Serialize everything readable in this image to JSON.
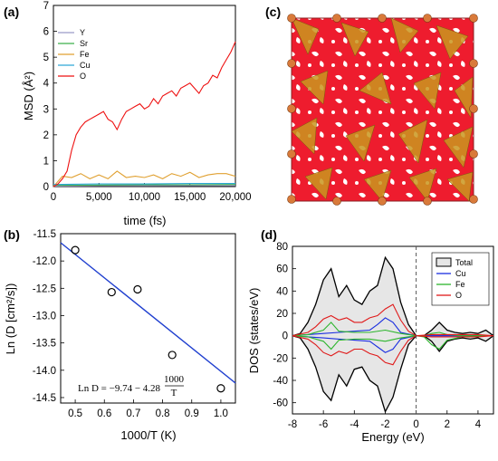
{
  "chart_data": [
    {
      "panel": "(a)",
      "type": "line",
      "xlabel": "time (fs)",
      "ylabel": "MSD (Å²)",
      "xlim": [
        0,
        20000
      ],
      "ylim": [
        0,
        7
      ],
      "x_ticks": [
        "0",
        "5,000",
        "10,000",
        "15,000",
        "20,000"
      ],
      "y_ticks": [
        "0",
        "1",
        "2",
        "3",
        "4",
        "5",
        "6",
        "7"
      ],
      "legend_position": "top-left",
      "series": [
        {
          "name": "Y",
          "color": "#9a9ac8",
          "x": [
            0,
            5000,
            10000,
            15000,
            20000
          ],
          "y": [
            0.02,
            0.03,
            0.03,
            0.04,
            0.04
          ]
        },
        {
          "name": "Sr",
          "color": "#3cb04a",
          "x": [
            0,
            5000,
            10000,
            15000,
            20000
          ],
          "y": [
            0.05,
            0.06,
            0.07,
            0.07,
            0.08
          ]
        },
        {
          "name": "Fe",
          "color": "#e0a030",
          "x": [
            0,
            1000,
            2000,
            3000,
            4000,
            5000,
            6000,
            7000,
            8000,
            9000,
            10000,
            11000,
            12000,
            13000,
            14000,
            15000,
            16000,
            17000,
            18000,
            19000,
            20000
          ],
          "y": [
            0.0,
            0.4,
            0.35,
            0.5,
            0.3,
            0.45,
            0.3,
            0.6,
            0.35,
            0.4,
            0.35,
            0.45,
            0.3,
            0.5,
            0.4,
            0.55,
            0.35,
            0.45,
            0.5,
            0.5,
            0.4
          ]
        },
        {
          "name": "Cu",
          "color": "#2ea8d8",
          "x": [
            0,
            5000,
            10000,
            15000,
            20000
          ],
          "y": [
            0.08,
            0.1,
            0.1,
            0.12,
            0.12
          ]
        },
        {
          "name": "O",
          "color": "#ee1111",
          "x": [
            0,
            500,
            1000,
            1500,
            2000,
            2500,
            3000,
            3500,
            4000,
            4500,
            5000,
            5500,
            6000,
            6500,
            7000,
            7500,
            8000,
            8500,
            9000,
            9500,
            10000,
            10500,
            11000,
            11500,
            12000,
            12500,
            13000,
            13500,
            14000,
            14500,
            15000,
            15500,
            16000,
            16500,
            17000,
            17500,
            18000,
            18500,
            19000,
            19500,
            20000
          ],
          "y": [
            0.0,
            0.1,
            0.3,
            0.6,
            1.4,
            2.0,
            2.3,
            2.5,
            2.6,
            2.7,
            2.8,
            2.9,
            2.6,
            2.5,
            2.2,
            2.6,
            2.9,
            3.0,
            3.1,
            3.2,
            3.0,
            3.1,
            3.4,
            3.2,
            3.5,
            3.6,
            3.7,
            3.5,
            3.8,
            3.9,
            4.0,
            3.8,
            3.6,
            3.9,
            4.0,
            4.3,
            4.2,
            4.6,
            4.9,
            5.2,
            5.6
          ]
        }
      ]
    },
    {
      "panel": "(b)",
      "type": "scatter",
      "xlabel": "1000/T (K)",
      "ylabel": "Ln (D [cm²/s])",
      "xlim": [
        0.45,
        1.05
      ],
      "ylim": [
        -14.6,
        -11.5
      ],
      "x_ticks": [
        "0.5",
        "0.6",
        "0.7",
        "0.8",
        "0.9",
        "1.0"
      ],
      "y_ticks": [
        "-11.5",
        "-12.0",
        "-12.5",
        "-13.0",
        "-13.5",
        "-14.0",
        "-14.5"
      ],
      "points": {
        "x": [
          0.5,
          0.625,
          0.714,
          0.833,
          1.0
        ],
        "y": [
          -11.8,
          -12.57,
          -12.52,
          -13.72,
          -14.33
        ]
      },
      "fit": {
        "intercept": -9.74,
        "slope": -4.28,
        "color": "#1f3fcf"
      },
      "equation_text": {
        "lhs": "Ln D = −9.74 − 4.28",
        "num": "1000",
        "den": "T"
      }
    },
    {
      "panel": "(c)",
      "type": "structure image",
      "colors": {
        "oxygen": "#ee1c2e",
        "polyhedra": "#c9961f",
        "cation": "#d97a3a"
      }
    },
    {
      "panel": "(d)",
      "type": "line",
      "xlabel": "Energy (eV)",
      "ylabel": "DOS (states/eV)",
      "xlim": [
        -8,
        5
      ],
      "ylim": [
        -70,
        80
      ],
      "x_ticks": [
        "-8",
        "-6",
        "-4",
        "-2",
        "0",
        "2",
        "4"
      ],
      "y_ticks": [
        "-60",
        "-40",
        "-20",
        "0",
        "20",
        "40",
        "60",
        "80"
      ],
      "fermi_level": 0,
      "legend_position": "top-right",
      "series": [
        {
          "name": "Total",
          "color": "#000000",
          "fill": "#e6e6e6",
          "x": [
            -8,
            -7.5,
            -7,
            -6.5,
            -6,
            -5.5,
            -5,
            -4.5,
            -4,
            -3.5,
            -3,
            -2.5,
            -2,
            -1.5,
            -1,
            -0.5,
            0,
            0.5,
            1,
            1.5,
            2,
            2.5,
            3,
            3.5,
            4,
            4.5,
            5
          ],
          "y_up": [
            0,
            2,
            12,
            28,
            50,
            60,
            35,
            45,
            32,
            28,
            40,
            45,
            70,
            60,
            30,
            10,
            0,
            0,
            5,
            12,
            5,
            3,
            2,
            3,
            2,
            5,
            0
          ],
          "y_down": [
            0,
            -2,
            -12,
            -28,
            -50,
            -58,
            -35,
            -45,
            -30,
            -28,
            -40,
            -45,
            -68,
            -55,
            -30,
            -8,
            0,
            0,
            -5,
            -14,
            -5,
            -3,
            -2,
            -3,
            -2,
            -5,
            0
          ]
        },
        {
          "name": "Cu",
          "color": "#1a2ee0",
          "x": [
            -8,
            -7,
            -6,
            -5,
            -4,
            -3,
            -2.5,
            -2,
            -1.5,
            -1,
            0,
            1,
            2,
            3,
            4,
            5
          ],
          "y_up": [
            0,
            1,
            2,
            3,
            4,
            5,
            10,
            16,
            12,
            3,
            0,
            0,
            0,
            0,
            0,
            0
          ],
          "y_down": [
            0,
            -1,
            -2,
            -3,
            -4,
            -5,
            -10,
            -15,
            -12,
            -3,
            0,
            0,
            0,
            0,
            0,
            0
          ]
        },
        {
          "name": "Fe",
          "color": "#2db52d",
          "x": [
            -8,
            -7,
            -6,
            -5.5,
            -5,
            -4,
            -3,
            -2,
            -1,
            0,
            0.5,
            1,
            1.5,
            2,
            3,
            4,
            5
          ],
          "y_up": [
            0,
            1,
            5,
            12,
            4,
            3,
            3,
            5,
            2,
            0,
            0,
            2,
            3,
            1,
            0,
            0,
            0
          ],
          "y_down": [
            0,
            -1,
            -5,
            -12,
            -4,
            -3,
            -3,
            -5,
            -2,
            0,
            -1,
            -8,
            -12,
            -4,
            -1,
            0,
            0
          ]
        },
        {
          "name": "O",
          "color": "#e01a1a",
          "x": [
            -8,
            -7,
            -6.5,
            -6,
            -5.5,
            -5,
            -4.5,
            -4,
            -3.5,
            -3,
            -2.5,
            -2,
            -1.5,
            -1,
            -0.5,
            0,
            1,
            2,
            3,
            4,
            5
          ],
          "y_up": [
            0,
            3,
            8,
            15,
            18,
            14,
            16,
            12,
            12,
            16,
            18,
            24,
            28,
            14,
            4,
            0,
            1,
            1,
            1,
            1,
            0
          ],
          "y_down": [
            0,
            -3,
            -8,
            -15,
            -18,
            -14,
            -16,
            -12,
            -12,
            -16,
            -18,
            -24,
            -26,
            -14,
            -4,
            0,
            -1,
            -1,
            -1,
            -1,
            0
          ]
        }
      ]
    }
  ]
}
